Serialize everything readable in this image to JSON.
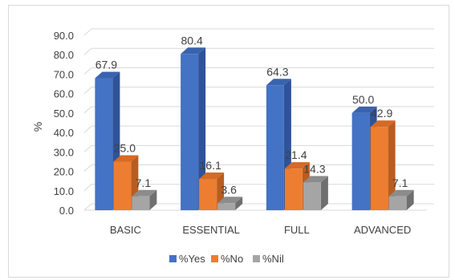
{
  "chart_data": {
    "type": "bar",
    "title": "",
    "xlabel": "",
    "ylabel": "%",
    "ylim": [
      0,
      90
    ],
    "ytick_step": 10,
    "ytick_labels": [
      "0.0",
      "10.0",
      "20.0",
      "30.0",
      "40.0",
      "50.0",
      "60.0",
      "70.0",
      "80.0",
      "90.0"
    ],
    "grid": true,
    "legend_position": "bottom",
    "categories": [
      "BASIC",
      "ESSENTIAL",
      "FULL",
      "ADVANCED"
    ],
    "series": [
      {
        "name": "%Yes",
        "values": [
          67.9,
          80.4,
          64.3,
          50.0
        ],
        "labels": [
          "67.9",
          "80.4",
          "64.3",
          "50.0"
        ],
        "color": "#4472c4",
        "side": "#2e539a",
        "top": "#3a63ad"
      },
      {
        "name": "%No",
        "values": [
          25.0,
          16.1,
          21.4,
          42.9
        ],
        "labels": [
          "25.0",
          "16.1",
          "21.4",
          "42.9"
        ],
        "color": "#ed7d31",
        "side": "#b85d1f",
        "top": "#d46b26"
      },
      {
        "name": "%Nil",
        "values": [
          7.1,
          3.6,
          14.3,
          7.1
        ],
        "labels": [
          "7.1",
          "3.6",
          "14.3",
          "7.1"
        ],
        "color": "#a5a5a5",
        "side": "#6f6f6f",
        "top": "#8c8c8c"
      }
    ]
  }
}
